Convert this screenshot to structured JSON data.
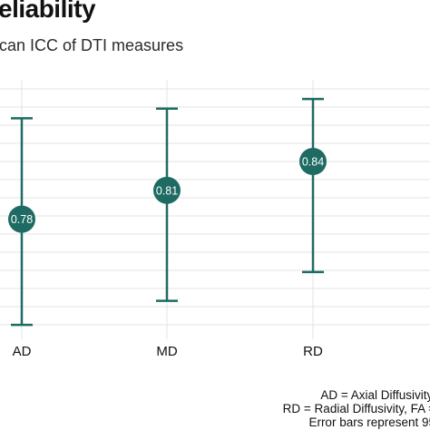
{
  "header": {
    "title": "eliability",
    "subtitle": "can ICC of DTI measures"
  },
  "caption": {
    "lines": [
      "AD = Axial Diffusivity,",
      "RD = Radial Diffusivity, FA =",
      "Error bars represent 95"
    ]
  },
  "colors": {
    "accent": "#1e6b63",
    "grid": "#e3e3e3",
    "text": "#111111"
  },
  "chart_data": {
    "type": "scatter",
    "title": "",
    "xlabel": "",
    "ylabel": "",
    "categories": [
      "AD",
      "MD",
      "RD"
    ],
    "series": [
      {
        "values": [
          0.78,
          0.81,
          0.84
        ],
        "labels": [
          "0.78",
          "0.81",
          "0.84"
        ],
        "ci_lower": [
          0.67,
          0.695,
          0.725
        ],
        "ci_upper": [
          0.885,
          0.895,
          0.905
        ]
      }
    ],
    "ylim": [
      0.655,
      0.925
    ],
    "grid": true,
    "error_bars": true
  }
}
